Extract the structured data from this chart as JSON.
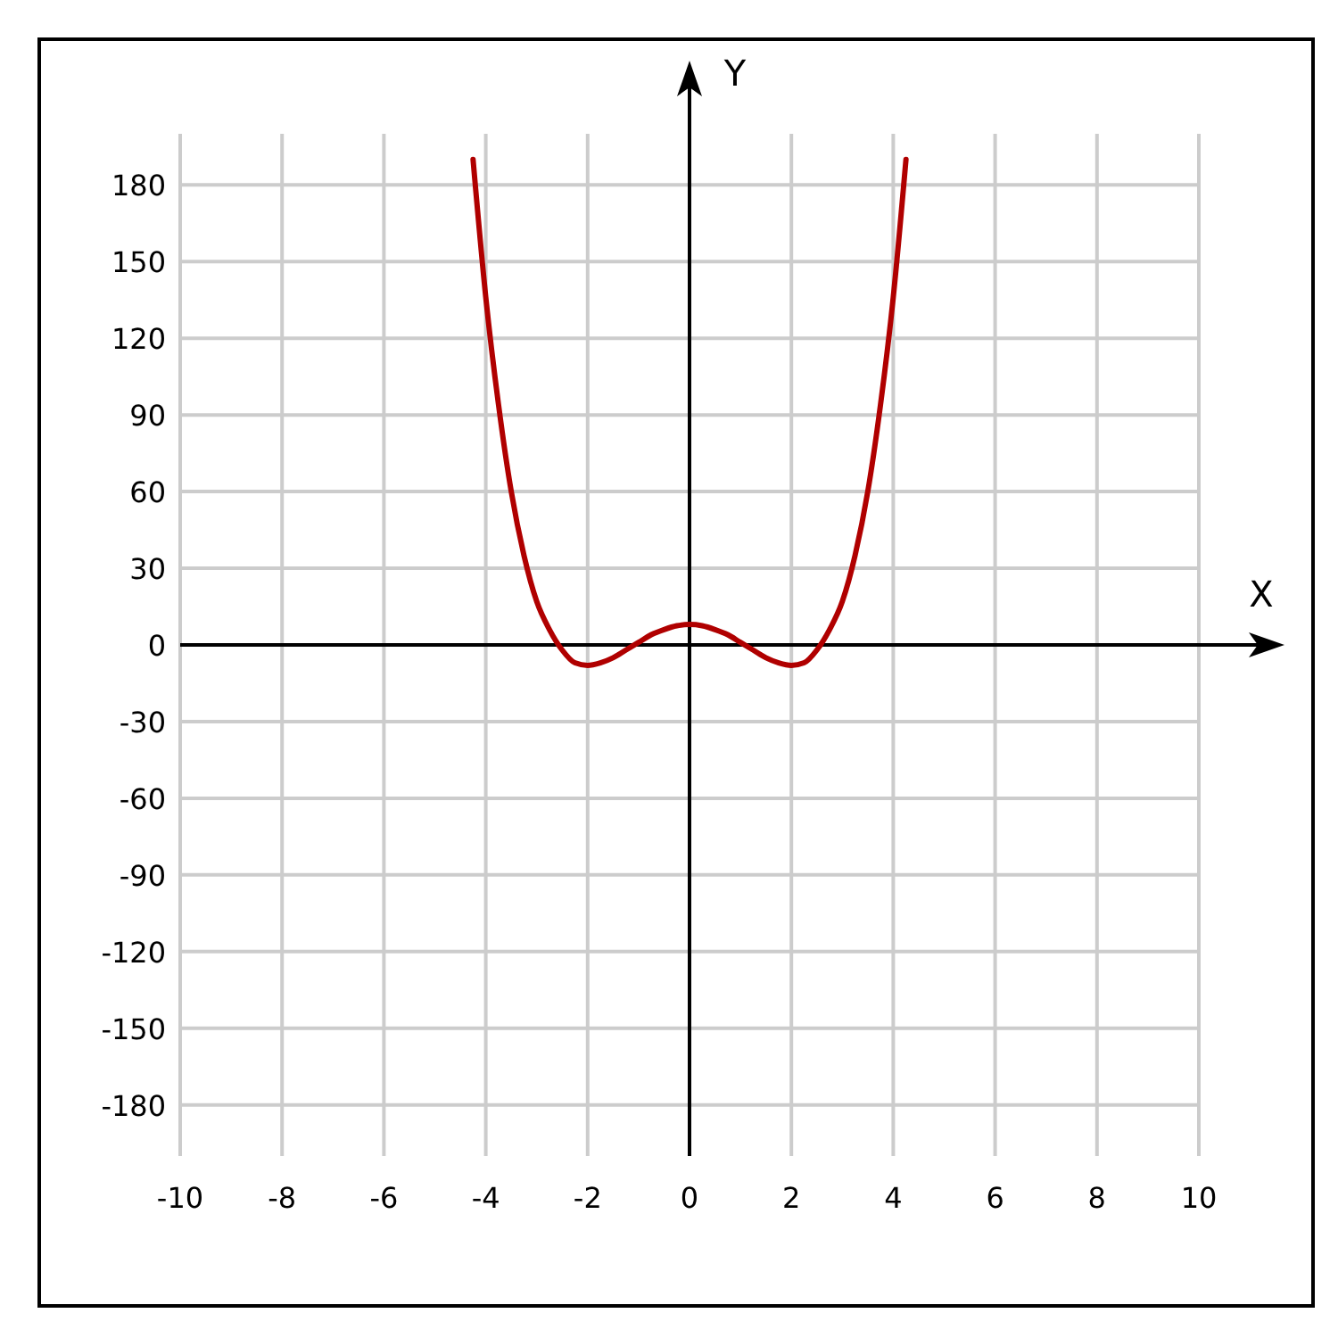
{
  "chart_data": {
    "type": "line",
    "xlabel": "X",
    "ylabel": "Y",
    "xlim": [
      -10,
      10
    ],
    "ylim": [
      -200,
      200
    ],
    "xticks": [
      -10,
      -8,
      -6,
      -4,
      -2,
      0,
      2,
      4,
      6,
      8,
      10
    ],
    "yticks": [
      -180,
      -150,
      -120,
      -90,
      -60,
      -30,
      0,
      30,
      60,
      90,
      120,
      150,
      180
    ],
    "grid": true,
    "marker": "none",
    "line_style": "solid",
    "series": [
      {
        "color": "#b00000",
        "x": [
          -4.25,
          -4,
          -3.75,
          -3.5,
          -3.25,
          -3,
          -2.75,
          -2.5,
          -2.25,
          -2,
          -1.75,
          -1.5,
          -1.25,
          -1,
          -0.75,
          -0.5,
          -0.25,
          0,
          0.25,
          0.5,
          0.75,
          1,
          1.25,
          1.5,
          1.75,
          2,
          2.25,
          2.5,
          2.75,
          3,
          3.25,
          3.5,
          3.75,
          4,
          4.25
        ],
        "values": [
          190,
          136,
          94,
          60,
          35,
          17,
          6,
          -2,
          -7,
          -8,
          -7,
          -5,
          -2,
          1,
          4,
          6,
          7.5,
          8,
          7.5,
          6,
          4,
          1,
          -2,
          -5,
          -7,
          -8,
          -7,
          -2,
          6,
          17,
          35,
          60,
          94,
          136,
          190
        ]
      }
    ]
  }
}
